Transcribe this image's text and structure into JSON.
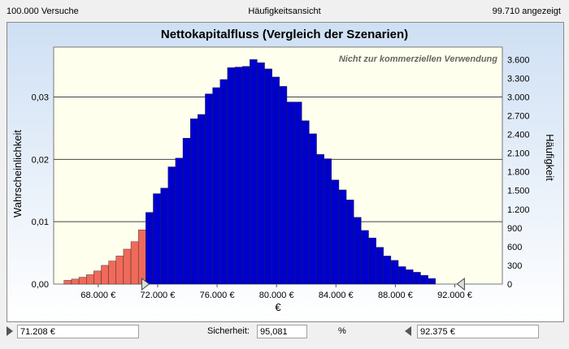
{
  "header": {
    "trials": "100.000 Versuche",
    "view": "Häufigkeitsansicht",
    "displayed": "99.710 angezeigt"
  },
  "watermark": "Nicht zur kommerziellen Verwendung",
  "footer": {
    "left_value": "71.208 €",
    "certainty_label": "Sicherheit:",
    "certainty_value": "95,081",
    "percent": "%",
    "right_value": "92.375 €"
  },
  "colors": {
    "bar_in_range": "#0000cc",
    "bar_out_range": "#ef6a5a",
    "plot_bg": "#ffffee",
    "grid": "#444444"
  },
  "chart_data": {
    "type": "bar",
    "title": "Nettokapitalfluss (Vergleich der Szenarien)",
    "xlabel": "€",
    "ylabel_left": "Wahrscheinlichkeit",
    "ylabel_right": "Häufigkeit",
    "xlim": [
      65000,
      95200
    ],
    "ylim_left": [
      0,
      0.038
    ],
    "ylim_right": [
      0,
      3800
    ],
    "x_ticks": [
      68000,
      72000,
      76000,
      80000,
      84000,
      88000,
      92000
    ],
    "x_tick_labels": [
      "68.000 €",
      "72.000 €",
      "76.000 €",
      "80.000 €",
      "84.000 €",
      "88.000 €",
      "92.000 €"
    ],
    "y_left_ticks": [
      0,
      0.01,
      0.02,
      0.03
    ],
    "y_left_tick_labels": [
      "0,00",
      "0,01",
      "0,02",
      "0,03"
    ],
    "y_right_ticks": [
      0,
      300,
      600,
      900,
      1200,
      1500,
      1800,
      2100,
      2400,
      2700,
      3000,
      3300,
      3600
    ],
    "y_right_tick_labels": [
      "0",
      "300",
      "600",
      "900",
      "1.200",
      "1.500",
      "1.800",
      "2.100",
      "2.400",
      "2.700",
      "3.000",
      "3.300",
      "3.600"
    ],
    "grid": "horizontal at left-axis ticks",
    "bin_start": 65700,
    "bin_width": 500,
    "frequencies": [
      60,
      80,
      110,
      150,
      210,
      300,
      370,
      450,
      560,
      680,
      870,
      1150,
      1450,
      1540,
      1880,
      2020,
      2340,
      2650,
      2720,
      3050,
      3150,
      3280,
      3470,
      3480,
      3490,
      3600,
      3550,
      3450,
      3320,
      3170,
      2920,
      2920,
      2620,
      2410,
      2080,
      2010,
      1670,
      1510,
      1350,
      1070,
      860,
      740,
      590,
      450,
      380,
      280,
      230,
      190,
      140,
      90
    ],
    "certainty_range": [
      71208,
      92375
    ],
    "certainty_percent": 95.081
  }
}
